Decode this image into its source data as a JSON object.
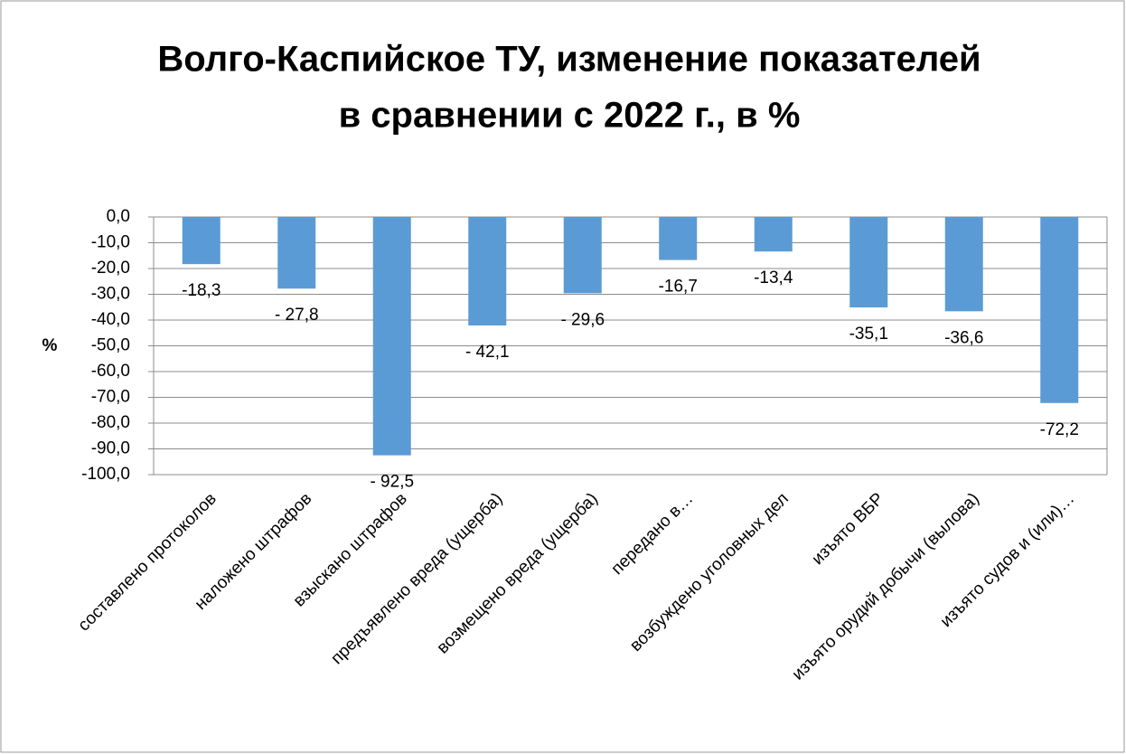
{
  "chart_data": {
    "type": "bar",
    "title": [
      "Волго-Каспийское ТУ, изменение показателей",
      "в сравнении с 2022 г., в %"
    ],
    "y_label": "%",
    "categories": [
      "составлено протоколов",
      "наложено штрафов",
      "взыскано штрафов",
      "предъявлено вреда (ущерба)",
      "возмещено вреда (ущерба)",
      "передано в…",
      "возбуждено уголовных дел",
      "изъято ВБР",
      "изъято орудий добычи (вылова)",
      "изъято судов и (или)…"
    ],
    "values": [
      -18.3,
      -27.8,
      -92.5,
      -42.1,
      -29.6,
      -16.7,
      -13.4,
      -35.1,
      -36.6,
      -72.2
    ],
    "value_labels": [
      "-18,3",
      "- 27,8",
      "- 92,5",
      "- 42,1",
      "- 29,6",
      "-16,7",
      "-13,4",
      "-35,1",
      "-36,6",
      "-72,2"
    ],
    "color": "#5b9bd5",
    "ylim": [
      -100,
      0
    ],
    "yticks": [
      {
        "value": 0,
        "label": "0,0"
      },
      {
        "value": -10,
        "label": "-10,0"
      },
      {
        "value": -20,
        "label": "-20,0"
      },
      {
        "value": -30,
        "label": "-30,0"
      },
      {
        "value": -40,
        "label": "-40,0"
      },
      {
        "value": -50,
        "label": "-50,0"
      },
      {
        "value": -60,
        "label": "-60,0"
      },
      {
        "value": -70,
        "label": "-70,0"
      },
      {
        "value": -80,
        "label": "-80,0"
      },
      {
        "value": -90,
        "label": "-90,0"
      },
      {
        "value": -100,
        "label": "-100,0"
      }
    ],
    "grid": true
  }
}
